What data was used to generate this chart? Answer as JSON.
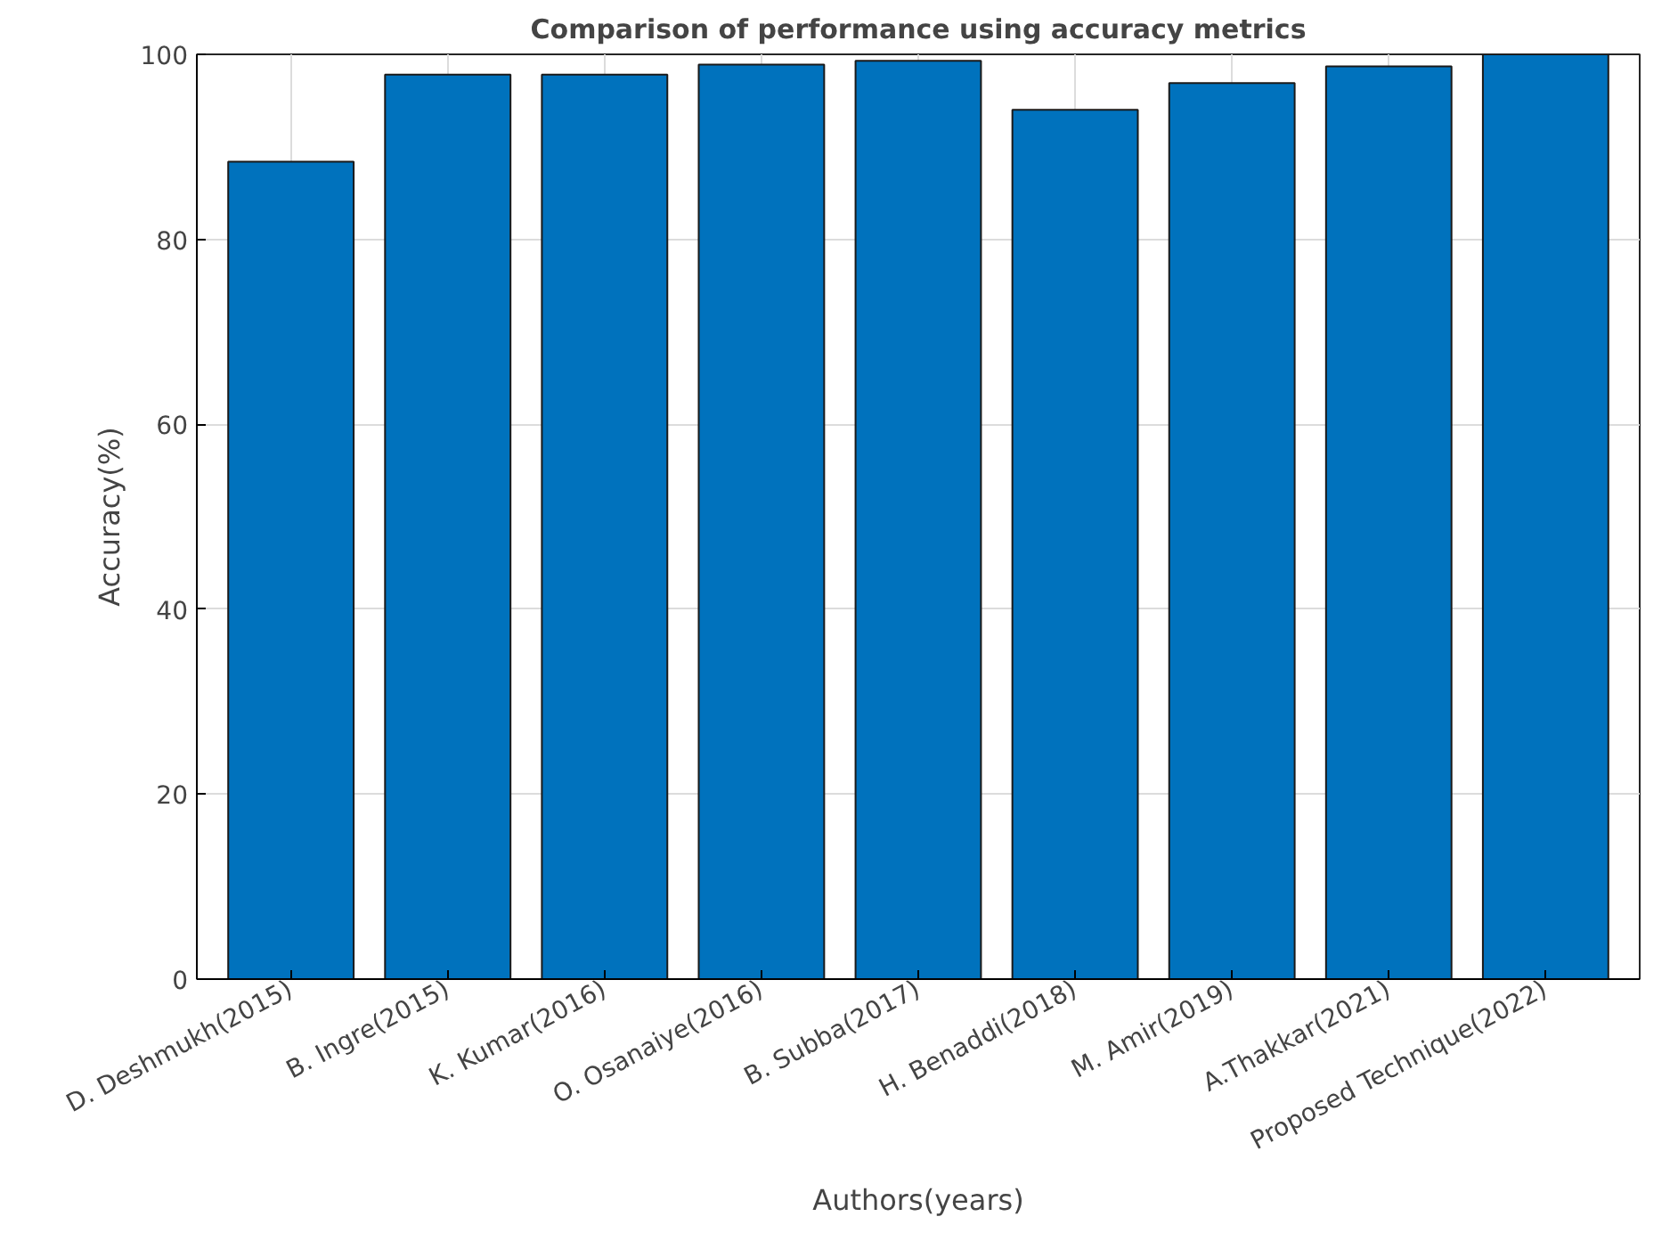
{
  "chart_data": {
    "type": "bar",
    "title": "Comparison of performance using accuracy metrics",
    "xlabel": "Authors(years)",
    "ylabel": "Accuracy(%)",
    "categories": [
      "D. Deshmukh(2015)",
      "B. Ingre(2015)",
      "K. Kumar(2016)",
      "O. Osanaiye(2016)",
      "B. Subba(2017)",
      "H. Benaddi(2018)",
      "M. Amir(2019)",
      "A.Thakkar(2021)",
      "Proposed Technique(2022)"
    ],
    "values": [
      88.4,
      97.8,
      97.8,
      98.9,
      99.3,
      94.0,
      96.9,
      98.7,
      100
    ],
    "color": "#0072bd",
    "ylim": [
      0,
      100
    ],
    "yticks": [
      0,
      20,
      40,
      60,
      80,
      100
    ],
    "grid": true
  }
}
